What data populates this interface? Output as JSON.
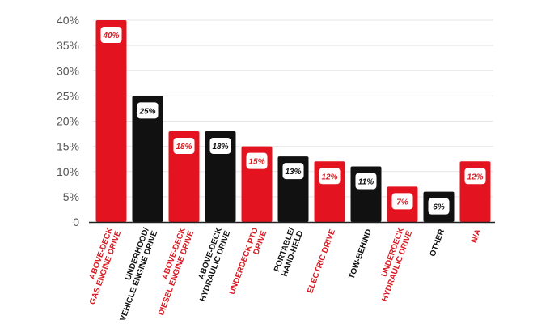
{
  "colors": {
    "red": "#e3141f",
    "black": "#111111",
    "red_text": "#d81b23",
    "axis_text": "#555555",
    "grid": "#e6e6e6"
  },
  "chart_data": {
    "type": "bar",
    "title": "",
    "xlabel": "",
    "ylabel": "",
    "ylim": [
      0,
      40
    ],
    "yticks": [
      "0",
      "5%",
      "10%",
      "15%",
      "20%",
      "25%",
      "30%",
      "35%",
      "40%"
    ],
    "grid": true,
    "categories": [
      [
        "ABOVE-DECK",
        "GAS ENGINE DRIVE"
      ],
      [
        "UNDERHOOD/",
        "VEHICLE ENGINE DRIVE"
      ],
      [
        "ABOVE-DECK",
        "DIESEL ENGINE DRIVE"
      ],
      [
        "ABOVE-DECK",
        "HYDRAULIC DRIVE"
      ],
      [
        "UNDERDECK PTO",
        "DRIVE"
      ],
      [
        "PORTABLE/",
        "HAND-HELD"
      ],
      [
        "ELECTRIC DRIVE"
      ],
      [
        "TOW-BEHIND"
      ],
      [
        "UNDERDECK",
        "HYDRAULIC DRIVE"
      ],
      [
        "OTHER"
      ],
      [
        "N/A"
      ]
    ],
    "values": [
      40,
      25,
      18,
      18,
      15,
      13,
      12,
      11,
      7,
      6,
      12
    ],
    "value_labels": [
      "40%",
      "25%",
      "18%",
      "18%",
      "15%",
      "13%",
      "12%",
      "11%",
      "7%",
      "6%",
      "12%"
    ],
    "bar_colors": [
      "red",
      "black",
      "red",
      "black",
      "red",
      "black",
      "red",
      "black",
      "red",
      "black",
      "red"
    ]
  }
}
